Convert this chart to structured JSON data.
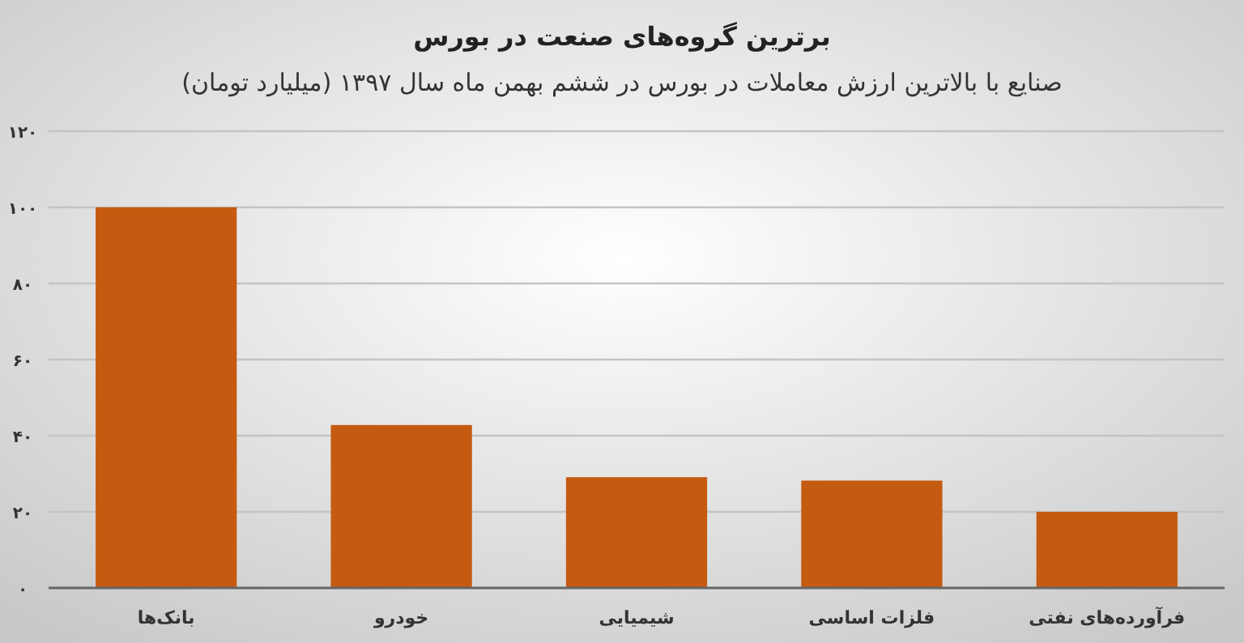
{
  "chart_data": {
    "type": "bar",
    "title": "برترین گروه‌های صنعت در بورس",
    "subtitle": "صنایع با بالاترین ارزش  معاملات در بورس در ششم بهمن ماه سال ۱۳۹۷ (میلیارد تومان)",
    "categories": [
      "بانک‌ها",
      "خودرو",
      "شیمیایی",
      "فلزات اساسی",
      "فرآورده‌های نفتی"
    ],
    "values": [
      100,
      42.8,
      29.1,
      28.2,
      20
    ],
    "color": "#c55a11",
    "ylim": [
      0,
      120
    ],
    "yticks": [
      {
        "value": 0,
        "label": "۰"
      },
      {
        "value": 20,
        "label": "۲۰"
      },
      {
        "value": 40,
        "label": "۴۰"
      },
      {
        "value": 60,
        "label": "۶۰"
      },
      {
        "value": 80,
        "label": "۸۰"
      },
      {
        "value": 100,
        "label": "۱۰۰"
      },
      {
        "value": 120,
        "label": "۱۲۰"
      }
    ],
    "grid": "y"
  }
}
